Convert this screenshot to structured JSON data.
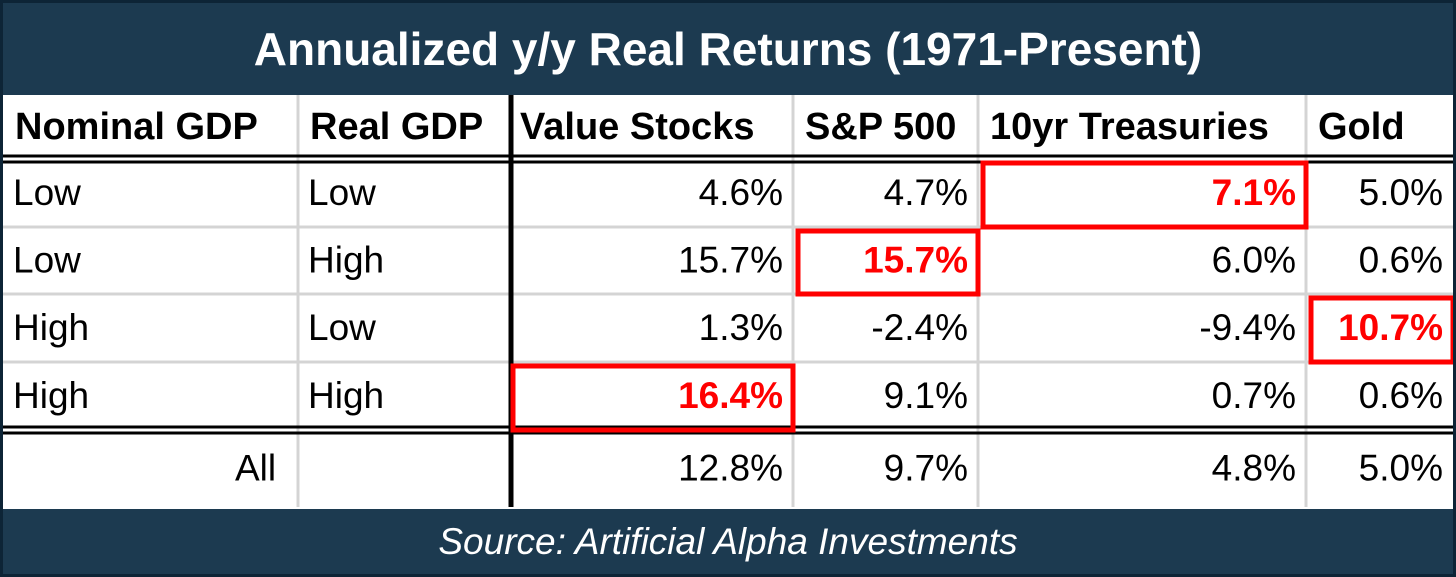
{
  "title": "Annualized y/y Real Returns (1971-Present)",
  "source": "Source: Artificial Alpha Investments",
  "colors": {
    "header_bg": "#1c3a50",
    "highlight": "#ff0000",
    "text": "#000000"
  },
  "chart_data": {
    "type": "table",
    "title": "Annualized y/y Real Returns (1971-Present)",
    "columns": [
      "Nominal GDP",
      "Real GDP",
      "Value Stocks",
      "S&P 500",
      "10yr Treasuries",
      "Gold"
    ],
    "rows": [
      {
        "nominal": "Low",
        "real": "Low",
        "values": [
          "4.6%",
          "4.7%",
          "7.1%",
          "5.0%"
        ],
        "best": 2
      },
      {
        "nominal": "Low",
        "real": "High",
        "values": [
          "15.7%",
          "15.7%",
          "6.0%",
          "0.6%"
        ],
        "best": 1
      },
      {
        "nominal": "High",
        "real": "Low",
        "values": [
          "1.3%",
          "-2.4%",
          "-9.4%",
          "10.7%"
        ],
        "best": 3
      },
      {
        "nominal": "High",
        "real": "High",
        "values": [
          "16.4%",
          "9.1%",
          "0.7%",
          "0.6%"
        ],
        "best": 0
      }
    ],
    "total_row": {
      "label": "All",
      "values": [
        "12.8%",
        "9.7%",
        "4.8%",
        "5.0%"
      ]
    }
  }
}
